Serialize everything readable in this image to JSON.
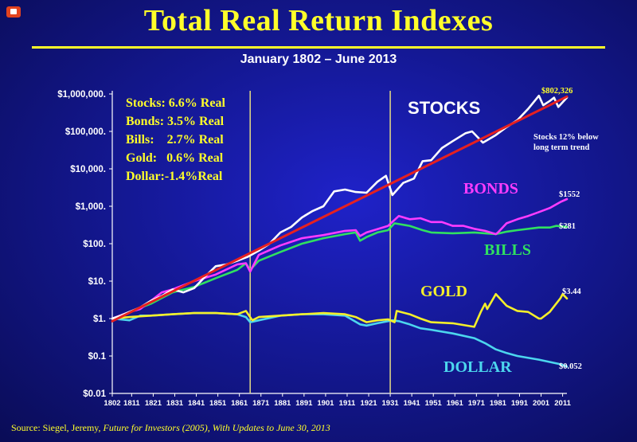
{
  "header": {
    "title": "Total Real Return Indexes",
    "subtitle": "January 1802 – June 2013"
  },
  "source": {
    "prefix": "Source: Siegel, Jeremy,",
    "italic": "Future for Investors (2005), With Updates to June 30, 2013"
  },
  "stats_box": [
    "Stocks: 6.6% Real",
    "Bonds: 3.5% Real",
    "Bills:    2.7% Real",
    "Gold:   0.6% Real",
    "Dollar:-1.4%Real"
  ],
  "annotation": {
    "line1": "Stocks 12% below",
    "line2": "long term trend"
  },
  "colors": {
    "background": "#141894",
    "title": "#ffff2a",
    "stocks": "#ffffff",
    "bonds": "#ff3cff",
    "bills": "#30e060",
    "gold": "#f4ef2a",
    "dollar": "#4cd6ee",
    "trend": "#e62020",
    "vertical_lines": "#d8cf86"
  },
  "chart_data": {
    "type": "line",
    "title": "Total Real Return Indexes",
    "subtitle": "January 1802 – June 2013",
    "y_scale": "log",
    "ylim": [
      0.01,
      1000000
    ],
    "xlim": [
      1802,
      2013
    ],
    "y_tick_values": [
      0.01,
      0.1,
      1,
      10,
      100,
      1000,
      10000,
      100000,
      1000000
    ],
    "y_tick_labels": [
      "$0.01",
      "$0.1",
      "$1.",
      "$10.",
      "$100.",
      "$1,000.",
      "$10,000.",
      "$100,000.",
      "$1,000,000."
    ],
    "x_tick_values": [
      1802,
      1811,
      1821,
      1831,
      1841,
      1851,
      1861,
      1871,
      1881,
      1891,
      1901,
      1911,
      1921,
      1931,
      1941,
      1951,
      1961,
      1971,
      1981,
      1991,
      2001,
      2011
    ],
    "x_tick_labels": [
      "1802",
      "1811",
      "1821",
      "1831",
      "1841",
      "1851",
      "1861",
      "1871",
      "1881",
      "1891",
      "1901",
      "1911",
      "1921",
      "1931",
      "1941",
      "1951",
      "1961",
      "1971",
      "1981",
      "1991",
      "2001",
      "2011"
    ],
    "vertical_markers": [
      1866,
      1931
    ],
    "grid": false,
    "series": [
      {
        "name": "STOCKS",
        "end_label": "$802,326",
        "x": [
          1802,
          1806,
          1810,
          1815,
          1820,
          1825,
          1830,
          1835,
          1840,
          1845,
          1850,
          1855,
          1860,
          1865,
          1870,
          1875,
          1880,
          1885,
          1890,
          1895,
          1900,
          1905,
          1910,
          1915,
          1920,
          1925,
          1929,
          1932,
          1937,
          1942,
          1946,
          1950,
          1955,
          1960,
          1966,
          1969,
          1974,
          1980,
          1985,
          1990,
          1995,
          2000,
          2002,
          2005,
          2007,
          2009,
          2013
        ],
        "values": [
          1,
          1.2,
          1.5,
          2,
          3,
          4,
          6,
          5,
          6.5,
          13,
          25,
          28,
          35,
          45,
          65,
          100,
          200,
          280,
          500,
          750,
          1000,
          2500,
          2800,
          2400,
          2300,
          4500,
          6500,
          2000,
          4200,
          5500,
          16000,
          17000,
          36000,
          55000,
          90000,
          100000,
          50000,
          80000,
          130000,
          200000,
          400000,
          900000,
          500000,
          650000,
          800000,
          450000,
          802326
        ]
      },
      {
        "name": "BONDS",
        "end_label": "$1552",
        "x": [
          1802,
          1810,
          1815,
          1820,
          1825,
          1830,
          1840,
          1850,
          1860,
          1864,
          1866,
          1868,
          1870,
          1880,
          1890,
          1900,
          1910,
          1915,
          1917,
          1920,
          1930,
          1935,
          1940,
          1945,
          1950,
          1955,
          1960,
          1965,
          1970,
          1975,
          1980,
          1981,
          1985,
          1990,
          1995,
          2000,
          2005,
          2010,
          2013
        ],
        "values": [
          1,
          1.5,
          1.8,
          3,
          5,
          6,
          10,
          15,
          28,
          30,
          18,
          30,
          50,
          90,
          140,
          170,
          220,
          230,
          160,
          200,
          300,
          550,
          450,
          480,
          380,
          380,
          300,
          300,
          250,
          220,
          180,
          200,
          350,
          450,
          550,
          700,
          900,
          1300,
          1552
        ]
      },
      {
        "name": "BILLS",
        "end_label": "$281",
        "x": [
          1802,
          1810,
          1820,
          1830,
          1840,
          1850,
          1860,
          1864,
          1866,
          1870,
          1880,
          1890,
          1900,
          1910,
          1915,
          1917,
          1920,
          1925,
          1930,
          1933,
          1940,
          1946,
          1950,
          1960,
          1970,
          1980,
          1985,
          1990,
          2000,
          2005,
          2008,
          2013
        ],
        "values": [
          1,
          1.5,
          2.5,
          5,
          7,
          12,
          20,
          30,
          20,
          35,
          60,
          100,
          140,
          180,
          200,
          120,
          150,
          200,
          230,
          350,
          300,
          230,
          200,
          190,
          200,
          180,
          210,
          230,
          270,
          270,
          300,
          281
        ]
      },
      {
        "name": "GOLD",
        "end_label": "$3.44",
        "x": [
          1802,
          1810,
          1820,
          1830,
          1840,
          1850,
          1860,
          1864,
          1867,
          1870,
          1880,
          1890,
          1900,
          1910,
          1915,
          1920,
          1925,
          1930,
          1933,
          1934,
          1940,
          1945,
          1950,
          1960,
          1970,
          1973,
          1975,
          1976,
          1980,
          1985,
          1990,
          1995,
          2000,
          2001,
          2005,
          2010,
          2011,
          2013
        ],
        "values": [
          1,
          1.1,
          1.2,
          1.3,
          1.4,
          1.4,
          1.3,
          1.6,
          0.9,
          1.1,
          1.2,
          1.3,
          1.4,
          1.3,
          1.1,
          0.8,
          0.9,
          0.95,
          0.8,
          1.6,
          1.3,
          1.0,
          0.8,
          0.75,
          0.6,
          1.5,
          2.5,
          1.8,
          4.5,
          2.2,
          1.6,
          1.5,
          1.0,
          1.0,
          1.5,
          3.5,
          4.5,
          3.44
        ]
      },
      {
        "name": "DOLLAR",
        "end_label": "$0.052",
        "x": [
          1802,
          1810,
          1815,
          1820,
          1830,
          1840,
          1850,
          1860,
          1864,
          1866,
          1870,
          1880,
          1890,
          1900,
          1910,
          1917,
          1920,
          1925,
          1932,
          1935,
          1940,
          1945,
          1950,
          1960,
          1970,
          1975,
          1980,
          1985,
          1990,
          2000,
          2010,
          2013
        ],
        "values": [
          1,
          0.9,
          1.2,
          1.2,
          1.3,
          1.4,
          1.4,
          1.3,
          1.1,
          0.8,
          0.9,
          1.2,
          1.3,
          1.3,
          1.2,
          0.7,
          0.65,
          0.75,
          0.9,
          0.85,
          0.7,
          0.55,
          0.5,
          0.4,
          0.3,
          0.22,
          0.15,
          0.12,
          0.1,
          0.08,
          0.06,
          0.052
        ]
      }
    ],
    "trend_line": {
      "x": [
        1802,
        2013
      ],
      "values": [
        0.85,
        850000
      ]
    }
  }
}
